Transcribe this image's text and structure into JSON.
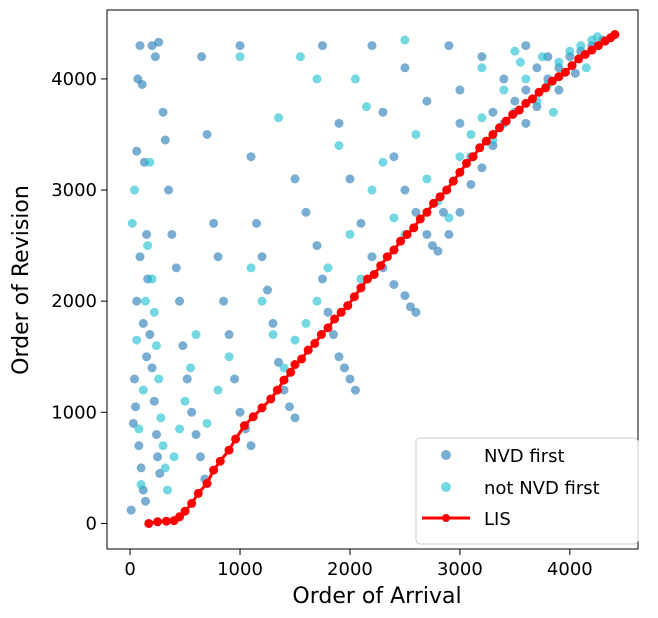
{
  "chart_data": {
    "type": "scatter",
    "title": "",
    "xlabel": "Order of Arrival",
    "ylabel": "Order of Revision",
    "xlim": [
      -210,
      4620
    ],
    "ylim": [
      -230,
      4620
    ],
    "x_ticks": [
      0,
      1000,
      2000,
      3000,
      4000
    ],
    "y_ticks": [
      0,
      1000,
      2000,
      3000,
      4000
    ],
    "grid": false,
    "legend_position": "lower-right",
    "series": [
      {
        "name": "NVD first",
        "kind": "scatter",
        "color": "#1f77b4",
        "points": [
          [
            10,
            120
          ],
          [
            30,
            900
          ],
          [
            40,
            1300
          ],
          [
            60,
            3350
          ],
          [
            70,
            4000
          ],
          [
            90,
            4300
          ],
          [
            110,
            3950
          ],
          [
            130,
            3250
          ],
          [
            150,
            2600
          ],
          [
            160,
            2200
          ],
          [
            180,
            1700
          ],
          [
            200,
            1400
          ],
          [
            220,
            1100
          ],
          [
            240,
            800
          ],
          [
            250,
            600
          ],
          [
            270,
            450
          ],
          [
            50,
            1050
          ],
          [
            80,
            700
          ],
          [
            100,
            500
          ],
          [
            120,
            300
          ],
          [
            140,
            200
          ],
          [
            60,
            2000
          ],
          [
            90,
            2400
          ],
          [
            120,
            1800
          ],
          [
            150,
            1500
          ],
          [
            200,
            4300
          ],
          [
            230,
            4200
          ],
          [
            260,
            4330
          ],
          [
            300,
            3700
          ],
          [
            320,
            3450
          ],
          [
            350,
            3000
          ],
          [
            380,
            2600
          ],
          [
            420,
            2300
          ],
          [
            450,
            2000
          ],
          [
            480,
            1600
          ],
          [
            520,
            1300
          ],
          [
            560,
            1000
          ],
          [
            600,
            800
          ],
          [
            640,
            600
          ],
          [
            680,
            400
          ],
          [
            650,
            4200
          ],
          [
            700,
            3500
          ],
          [
            760,
            2700
          ],
          [
            800,
            2400
          ],
          [
            850,
            2000
          ],
          [
            900,
            1700
          ],
          [
            950,
            1300
          ],
          [
            1000,
            1000
          ],
          [
            1050,
            850
          ],
          [
            1100,
            700
          ],
          [
            1000,
            4300
          ],
          [
            1100,
            3300
          ],
          [
            1150,
            2700
          ],
          [
            1200,
            2400
          ],
          [
            1250,
            2100
          ],
          [
            1300,
            1800
          ],
          [
            1350,
            1450
          ],
          [
            1400,
            1200
          ],
          [
            1450,
            1050
          ],
          [
            1500,
            950
          ],
          [
            1500,
            3100
          ],
          [
            1600,
            2800
          ],
          [
            1700,
            2500
          ],
          [
            1750,
            2200
          ],
          [
            1800,
            1900
          ],
          [
            1850,
            1700
          ],
          [
            1900,
            1500
          ],
          [
            1950,
            1400
          ],
          [
            2000,
            1300
          ],
          [
            2050,
            1200
          ],
          [
            1750,
            4300
          ],
          [
            1900,
            3600
          ],
          [
            2000,
            3100
          ],
          [
            2100,
            2700
          ],
          [
            2200,
            2400
          ],
          [
            2300,
            2300
          ],
          [
            2400,
            2150
          ],
          [
            2500,
            2050
          ],
          [
            2550,
            1950
          ],
          [
            2600,
            1900
          ],
          [
            2200,
            4300
          ],
          [
            2300,
            3700
          ],
          [
            2400,
            3300
          ],
          [
            2500,
            3000
          ],
          [
            2600,
            2800
          ],
          [
            2700,
            2600
          ],
          [
            2750,
            2500
          ],
          [
            2800,
            2450
          ],
          [
            2900,
            2600
          ],
          [
            3000,
            2800
          ],
          [
            2500,
            4100
          ],
          [
            2700,
            3800
          ],
          [
            2900,
            4300
          ],
          [
            3000,
            3600
          ],
          [
            3100,
            3300
          ],
          [
            3200,
            3200
          ],
          [
            3300,
            3400
          ],
          [
            3400,
            3600
          ],
          [
            3500,
            3800
          ],
          [
            3600,
            3900
          ],
          [
            3200,
            4200
          ],
          [
            3400,
            4000
          ],
          [
            3600,
            4300
          ],
          [
            3700,
            4100
          ],
          [
            3800,
            4000
          ],
          [
            3900,
            4100
          ],
          [
            4000,
            4200
          ],
          [
            4100,
            4250
          ],
          [
            4200,
            4300
          ],
          [
            4300,
            4350
          ],
          [
            3000,
            3900
          ],
          [
            3300,
            3700
          ],
          [
            3500,
            3700
          ],
          [
            3700,
            3750
          ],
          [
            3900,
            3900
          ],
          [
            4050,
            4050
          ],
          [
            3800,
            4200
          ],
          [
            3600,
            3600
          ],
          [
            3100,
            3050
          ],
          [
            2850,
            2800
          ]
        ]
      },
      {
        "name": "not NVD first",
        "kind": "scatter",
        "color": "#17becf",
        "points": [
          [
            20,
            2700
          ],
          [
            40,
            3000
          ],
          [
            60,
            1650
          ],
          [
            80,
            850
          ],
          [
            100,
            350
          ],
          [
            120,
            1200
          ],
          [
            140,
            2000
          ],
          [
            160,
            2500
          ],
          [
            180,
            3250
          ],
          [
            200,
            2200
          ],
          [
            220,
            1900
          ],
          [
            240,
            1600
          ],
          [
            260,
            1300
          ],
          [
            280,
            950
          ],
          [
            300,
            700
          ],
          [
            320,
            500
          ],
          [
            340,
            300
          ],
          [
            400,
            600
          ],
          [
            450,
            850
          ],
          [
            500,
            1100
          ],
          [
            550,
            1400
          ],
          [
            600,
            1700
          ],
          [
            700,
            900
          ],
          [
            800,
            1200
          ],
          [
            900,
            1500
          ],
          [
            1000,
            4200
          ],
          [
            1100,
            2300
          ],
          [
            1200,
            2000
          ],
          [
            1300,
            1700
          ],
          [
            1350,
            3650
          ],
          [
            1400,
            1400
          ],
          [
            1500,
            1650
          ],
          [
            1600,
            1800
          ],
          [
            1700,
            2000
          ],
          [
            1800,
            2300
          ],
          [
            1900,
            3400
          ],
          [
            2000,
            2600
          ],
          [
            2100,
            2200
          ],
          [
            2200,
            3000
          ],
          [
            2300,
            3250
          ],
          [
            2400,
            2750
          ],
          [
            2500,
            2600
          ],
          [
            2600,
            3500
          ],
          [
            2700,
            3100
          ],
          [
            2800,
            2900
          ],
          [
            2900,
            2750
          ],
          [
            3000,
            3300
          ],
          [
            3100,
            3500
          ],
          [
            3200,
            3650
          ],
          [
            3300,
            3450
          ],
          [
            3400,
            3900
          ],
          [
            3500,
            4250
          ],
          [
            3600,
            4000
          ],
          [
            3700,
            3800
          ],
          [
            3800,
            3950
          ],
          [
            3900,
            4150
          ],
          [
            4000,
            4250
          ],
          [
            4100,
            4300
          ],
          [
            4200,
            4350
          ],
          [
            4250,
            4380
          ],
          [
            2500,
            4350
          ],
          [
            3200,
            4100
          ],
          [
            3550,
            4150
          ],
          [
            3750,
            4200
          ],
          [
            3850,
            3700
          ],
          [
            4150,
            4100
          ],
          [
            1700,
            4000
          ],
          [
            1550,
            4200
          ],
          [
            2050,
            4000
          ],
          [
            2150,
            3750
          ]
        ]
      },
      {
        "name": "LIS",
        "kind": "line",
        "color": "#ff0000",
        "points": [
          [
            170,
            0
          ],
          [
            250,
            15
          ],
          [
            330,
            20
          ],
          [
            400,
            25
          ],
          [
            450,
            60
          ],
          [
            500,
            110
          ],
          [
            560,
            180
          ],
          [
            620,
            270
          ],
          [
            700,
            360
          ],
          [
            760,
            480
          ],
          [
            820,
            560
          ],
          [
            900,
            660
          ],
          [
            960,
            760
          ],
          [
            1040,
            880
          ],
          [
            1120,
            960
          ],
          [
            1200,
            1040
          ],
          [
            1280,
            1120
          ],
          [
            1340,
            1200
          ],
          [
            1400,
            1290
          ],
          [
            1460,
            1360
          ],
          [
            1500,
            1430
          ],
          [
            1560,
            1480
          ],
          [
            1620,
            1560
          ],
          [
            1680,
            1620
          ],
          [
            1740,
            1700
          ],
          [
            1800,
            1760
          ],
          [
            1860,
            1840
          ],
          [
            1920,
            1900
          ],
          [
            1980,
            1960
          ],
          [
            2040,
            2040
          ],
          [
            2100,
            2120
          ],
          [
            2160,
            2200
          ],
          [
            2220,
            2240
          ],
          [
            2280,
            2320
          ],
          [
            2340,
            2400
          ],
          [
            2400,
            2460
          ],
          [
            2460,
            2540
          ],
          [
            2520,
            2600
          ],
          [
            2580,
            2660
          ],
          [
            2640,
            2740
          ],
          [
            2700,
            2800
          ],
          [
            2760,
            2880
          ],
          [
            2820,
            2940
          ],
          [
            2880,
            3000
          ],
          [
            2940,
            3080
          ],
          [
            3000,
            3160
          ],
          [
            3060,
            3240
          ],
          [
            3120,
            3300
          ],
          [
            3180,
            3380
          ],
          [
            3240,
            3440
          ],
          [
            3300,
            3500
          ],
          [
            3360,
            3560
          ],
          [
            3420,
            3620
          ],
          [
            3480,
            3680
          ],
          [
            3540,
            3720
          ],
          [
            3600,
            3780
          ],
          [
            3660,
            3820
          ],
          [
            3720,
            3880
          ],
          [
            3780,
            3920
          ],
          [
            3840,
            3980
          ],
          [
            3900,
            4020
          ],
          [
            3960,
            4060
          ],
          [
            4020,
            4120
          ],
          [
            4080,
            4180
          ],
          [
            4140,
            4220
          ],
          [
            4200,
            4260
          ],
          [
            4260,
            4300
          ],
          [
            4320,
            4340
          ],
          [
            4370,
            4370
          ],
          [
            4410,
            4400
          ]
        ]
      }
    ]
  }
}
